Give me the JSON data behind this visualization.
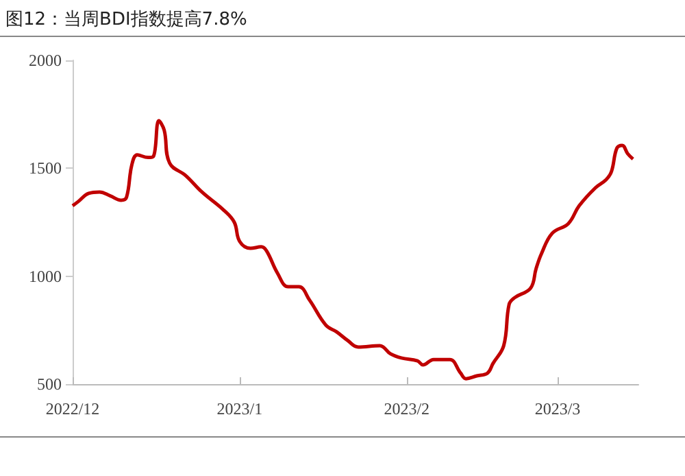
{
  "chart_data": {
    "type": "line",
    "title": "图12：当周BDI指数提高7.8%",
    "x": [
      "2022-12-01",
      "2022-12-02",
      "2022-12-04",
      "2022-12-06",
      "2022-12-08",
      "2022-12-10",
      "2022-12-11",
      "2022-12-12",
      "2022-12-13",
      "2022-12-15",
      "2022-12-16",
      "2022-12-17",
      "2022-12-18",
      "2022-12-19",
      "2022-12-22",
      "2022-12-25",
      "2022-12-29",
      "2022-12-31",
      "2023-01-01",
      "2023-01-03",
      "2023-01-05",
      "2023-01-06",
      "2023-01-08",
      "2023-01-10",
      "2023-01-12",
      "2023-01-14",
      "2023-01-17",
      "2023-01-19",
      "2023-01-21",
      "2023-01-23",
      "2023-01-27",
      "2023-01-29",
      "2023-01-31",
      "2023-02-03",
      "2023-02-04",
      "2023-02-06",
      "2023-02-09",
      "2023-02-11",
      "2023-02-12",
      "2023-02-14",
      "2023-02-16",
      "2023-02-17",
      "2023-02-19",
      "2023-02-20",
      "2023-02-21",
      "2023-02-24",
      "2023-02-25",
      "2023-02-26",
      "2023-02-28",
      "2023-03-03",
      "2023-03-05",
      "2023-03-08",
      "2023-03-10",
      "2023-03-11",
      "2023-03-12",
      "2023-03-13",
      "2023-03-14",
      "2023-03-15"
    ],
    "series": [
      {
        "color": "#c00000",
        "values": [
          1326,
          1345,
          1384,
          1390,
          1372,
          1352,
          1365,
          1517,
          1562,
          1550,
          1555,
          1720,
          1676,
          1524,
          1466,
          1390,
          1307,
          1250,
          1161,
          1129,
          1136,
          1117,
          1015,
          951,
          951,
          888,
          773,
          742,
          703,
          672,
          678,
          640,
          621,
          608,
          589,
          614,
          614,
          551,
          525,
          538,
          551,
          595,
          678,
          869,
          900,
          945,
          1034,
          1104,
          1199,
          1244,
          1326,
          1409,
          1447,
          1485,
          1593,
          1606,
          1568,
          1543
        ]
      }
    ],
    "xlim": [
      "2022-12-01",
      "2023-03-16"
    ],
    "xticks": [
      {
        "value": "2022-12-01",
        "label": "2022/12"
      },
      {
        "value": "2023-01-01",
        "label": "2023/1"
      },
      {
        "value": "2023-02-01",
        "label": "2023/2"
      },
      {
        "value": "2023-03-01",
        "label": "2023/3"
      }
    ],
    "ylim": [
      500,
      2000
    ],
    "yticks": [
      500,
      1000,
      1500,
      2000
    ],
    "marker": "none"
  }
}
